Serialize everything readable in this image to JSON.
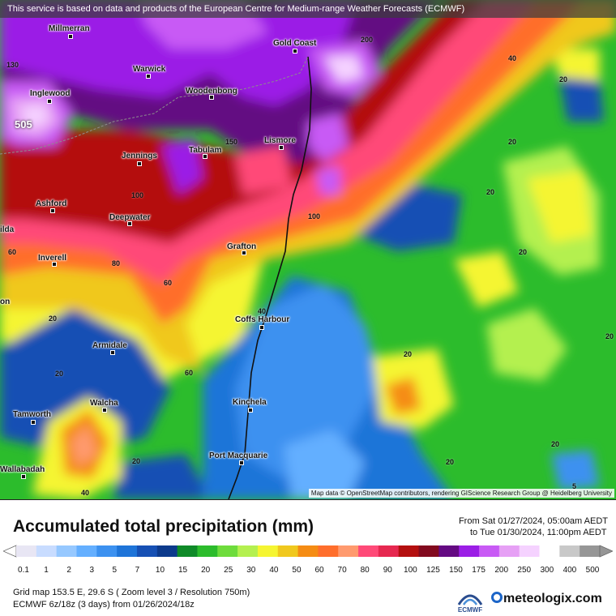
{
  "banner": "This service is based on data and products of the European Centre for Medium-range Weather Forecasts (ECMWF)",
  "map_credit": "Map data © OpenStreetMap contributors, rendering GIScience Research Group @ Heidelberg University",
  "title": "Accumulated total precipitation (mm)",
  "period": {
    "from": "From Sat 01/27/2024, 05:00am AEDT",
    "to": "to Tue 01/30/2024, 11:00pm AEDT"
  },
  "legend": {
    "labels": [
      "0.1",
      "1",
      "2",
      "3",
      "5",
      "7",
      "10",
      "15",
      "20",
      "25",
      "30",
      "40",
      "50",
      "60",
      "70",
      "80",
      "90",
      "100",
      "125",
      "150",
      "175",
      "200",
      "250",
      "300",
      "400",
      "500"
    ],
    "colors": [
      "#e8e6f4",
      "#c8dcff",
      "#96c8ff",
      "#64afff",
      "#3c91f0",
      "#1e74d8",
      "#1650b4",
      "#0c3a8c",
      "#0f8a28",
      "#2cbc2c",
      "#6edc3c",
      "#b4f050",
      "#f5f532",
      "#f0c81e",
      "#f58c14",
      "#ff6e2c",
      "#ff9a6e",
      "#ff4a78",
      "#e62850",
      "#b40f0f",
      "#820a1e",
      "#640a82",
      "#9b1ee6",
      "#c85af5",
      "#e6a0f5",
      "#f5d2ff",
      "#ffffff",
      "#c8c8c8",
      "#969696"
    ]
  },
  "cities": [
    {
      "name": "Millmerran"
    },
    {
      "name": "Gold Coast"
    },
    {
      "name": "Warwick"
    },
    {
      "name": "Inglewood"
    },
    {
      "name": "Woodenbong"
    },
    {
      "name": "Jennings"
    },
    {
      "name": "Tabulam"
    },
    {
      "name": "Lismore"
    },
    {
      "name": "Ashford"
    },
    {
      "name": "Deepwater"
    },
    {
      "name": "Grafton"
    },
    {
      "name": "Inverell"
    },
    {
      "name": "Coffs Harbour"
    },
    {
      "name": "Armidale"
    },
    {
      "name": "Walcha"
    },
    {
      "name": "Kinchela"
    },
    {
      "name": "Tamworth"
    },
    {
      "name": "Port Macquarie"
    },
    {
      "name": "Wallabadah"
    },
    {
      "name": "ilda"
    },
    {
      "name": "on"
    }
  ],
  "contour_values": [
    "130",
    "200",
    "40",
    "20",
    "505",
    "150",
    "100",
    "20",
    "20",
    "100",
    "20",
    "60",
    "80",
    "20",
    "60",
    "40",
    "20",
    "20",
    "20",
    "60",
    "20",
    "20",
    "20",
    "40",
    "5"
  ],
  "info": {
    "line1": "Grid map 153.5 E, 29.6 S ( Zoom level 3 / Resolution 750m)",
    "line2": "ECMWF 6z/18z (3 days) from  01/26/2024/18z"
  },
  "logos": {
    "ecmwf": "ECMWF",
    "meteologix": "meteologix.com"
  }
}
